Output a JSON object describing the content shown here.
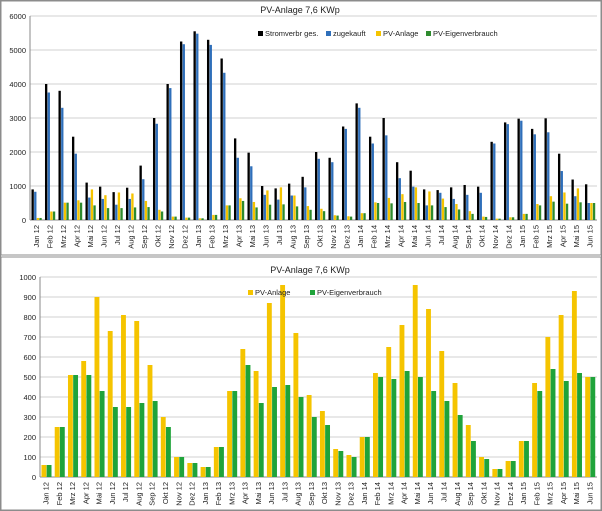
{
  "chart_data": [
    {
      "type": "bar",
      "title": "PV-Anlage 7,6 KWp",
      "ylim": [
        0,
        6000
      ],
      "yticks": [
        0,
        1000,
        2000,
        3000,
        4000,
        5000,
        6000
      ],
      "grid": true,
      "legend_position": "top-center",
      "categories": [
        "Jan 12",
        "Feb 12",
        "Mrz 12",
        "Apr 12",
        "Mai 12",
        "Jun 12",
        "Jul 12",
        "Aug 12",
        "Sep 12",
        "Okt 12",
        "Nov 12",
        "Dez 12",
        "Jan 13",
        "Feb 13",
        "Mrz 13",
        "Apr 13",
        "Mai 13",
        "Jun 13",
        "Jul 13",
        "Aug 13",
        "Sep 13",
        "Okt 13",
        "Nov 13",
        "Dez 13",
        "Jan 14",
        "Feb 14",
        "Mrz 14",
        "Apr 14",
        "Mai 14",
        "Jun 14",
        "Jul 14",
        "Aug 14",
        "Sep 14",
        "Okt 14",
        "Nov 14",
        "Dez 14",
        "Jan 15",
        "Feb 15",
        "Mrz 15",
        "Apr 15",
        "Mai 15",
        "Jun 15"
      ],
      "x_tick_labels": [
        "Jan 12",
        "Feb 12",
        "Mrz 12",
        "Apr 12",
        "Mai 12",
        "Jun 12",
        "Jul 12",
        "Aug 12",
        "Sep 12",
        "Okt 12",
        "Nov 12",
        "Dez 12",
        "Jan 13",
        "Feb 13",
        "Mrz 13",
        "Apr 13",
        "Mai 13",
        "Jun 13",
        "Jul 13",
        "Aug 13",
        "Sep 13",
        "Okt 13",
        "Nov 13",
        "Dez 13",
        "Jan 14",
        "Feb 14",
        "Mrz 14",
        "Apr 14",
        "Mai 14",
        "Jun 14",
        "Jul 14",
        "Aug 14",
        "Sep 14",
        "Okt 14",
        "Nov 14",
        "Dez 14",
        "Jan 15",
        "Feb 15",
        "Mrz 15",
        "Apr 15",
        "Mai 15",
        "Jun 15"
      ],
      "series": [
        {
          "name": "Stromverbr ges.",
          "color": "#000000",
          "values": [
            900,
            4000,
            3800,
            2450,
            1100,
            980,
            820,
            950,
            1600,
            3000,
            4000,
            5250,
            5550,
            5300,
            4750,
            2400,
            1980,
            1000,
            930,
            1070,
            1270,
            2000,
            1830,
            2750,
            3430,
            2450,
            3000,
            1700,
            1450,
            900,
            880,
            960,
            1030,
            980,
            2300,
            2870,
            2980,
            2680,
            2990,
            1950,
            1190,
            1050
          ]
        },
        {
          "name": "zugekauft",
          "color": "#2f6fba",
          "values": [
            830,
            3750,
            3300,
            1950,
            660,
            620,
            450,
            620,
            1200,
            2830,
            3880,
            5170,
            5480,
            5150,
            4330,
            1830,
            1580,
            740,
            600,
            720,
            960,
            1800,
            1700,
            2680,
            3300,
            2250,
            2490,
            1230,
            980,
            430,
            800,
            620,
            740,
            800,
            2250,
            2820,
            2920,
            2520,
            2580,
            1440,
            700,
            500
          ]
        },
        {
          "name": "PV-Anlage",
          "color": "#f5c400",
          "values": [
            60,
            250,
            510,
            580,
            900,
            730,
            810,
            780,
            560,
            300,
            100,
            70,
            50,
            150,
            430,
            640,
            530,
            870,
            960,
            720,
            410,
            330,
            140,
            110,
            200,
            520,
            650,
            760,
            960,
            840,
            630,
            470,
            260,
            100,
            40,
            80,
            180,
            470,
            700,
            810,
            930,
            500
          ]
        },
        {
          "name": "PV-Eigenverbrauch",
          "color": "#2e8b2e",
          "values": [
            60,
            250,
            510,
            510,
            430,
            350,
            350,
            370,
            380,
            250,
            100,
            70,
            50,
            150,
            430,
            560,
            370,
            450,
            460,
            400,
            300,
            260,
            130,
            100,
            200,
            500,
            490,
            530,
            500,
            430,
            380,
            310,
            180,
            90,
            40,
            80,
            180,
            430,
            540,
            480,
            520,
            500
          ]
        }
      ]
    },
    {
      "type": "bar",
      "title": "PV-Anlage 7,6 KWp",
      "ylim": [
        0,
        1000
      ],
      "yticks": [
        0,
        100,
        200,
        300,
        400,
        500,
        600,
        700,
        800,
        900,
        1000
      ],
      "grid": true,
      "legend_position": "top-center",
      "categories": [
        "Jan 12",
        "Feb 12",
        "Mrz 12",
        "Apr 12",
        "Mai 12",
        "Jun 12",
        "Jul 12",
        "Aug 12",
        "Sep 12",
        "Okt 12",
        "Nov 12",
        "Dez 12",
        "Jan 13",
        "Feb 13",
        "Mrz 13",
        "Apr 13",
        "Mai 13",
        "Jun 13",
        "Jul 13",
        "Aug 13",
        "Sep 13",
        "Okt 13",
        "Nov 13",
        "Dez 13",
        "Jan 14",
        "Feb 14",
        "Mrz 14",
        "Apr 14",
        "Mai 14",
        "Jun 14",
        "Jul 14",
        "Aug 14",
        "Sep 14",
        "Okt 14",
        "Nov 14",
        "Dez 14",
        "Jan 15",
        "Feb 15",
        "Mrz 15",
        "Apr 15",
        "Mai 15",
        "Jun 15"
      ],
      "x_tick_labels": [
        "Jan 12",
        "Feb 12",
        "Mrz 12",
        "Apr 12",
        "Mai 12",
        "Jun 12",
        "Jul 12",
        "Aug 12",
        "Sep 12",
        "Okt 12",
        "Nov 12",
        "Dez 12",
        "Jan 13",
        "Feb 13",
        "Mrz 13",
        "Apr 13",
        "Mai 13",
        "Jun 13",
        "Jul 13",
        "Aug 13",
        "Sep 13",
        "Okt 13",
        "Nov 13",
        "Dez 13",
        "Jan 14",
        "Feb 14",
        "Mrz 14",
        "Apr 14",
        "Mai 14",
        "Jun 14",
        "Jul 14",
        "Aug 14",
        "Sep 14",
        "Okt 14",
        "Nov 14",
        "Dez 14",
        "Jan 15",
        "Feb 15",
        "Mrz 15",
        "Apr 15",
        "Mai 15",
        "Jun 15"
      ],
      "series": [
        {
          "name": "PV-Anlage",
          "color": "#f5c400",
          "values": [
            60,
            250,
            510,
            580,
            900,
            730,
            810,
            780,
            560,
            300,
            100,
            70,
            50,
            150,
            430,
            640,
            530,
            870,
            960,
            720,
            410,
            330,
            140,
            110,
            200,
            520,
            650,
            760,
            960,
            840,
            630,
            470,
            260,
            100,
            40,
            80,
            180,
            470,
            700,
            810,
            930,
            500
          ]
        },
        {
          "name": "PV-Eigenverbrauch",
          "color": "#1fa33a",
          "values": [
            60,
            250,
            510,
            510,
            430,
            350,
            350,
            370,
            380,
            250,
            100,
            70,
            50,
            150,
            430,
            560,
            370,
            450,
            460,
            400,
            300,
            260,
            130,
            100,
            200,
            500,
            490,
            530,
            500,
            430,
            380,
            310,
            180,
            90,
            40,
            80,
            180,
            430,
            540,
            480,
            520,
            500
          ]
        }
      ]
    }
  ]
}
